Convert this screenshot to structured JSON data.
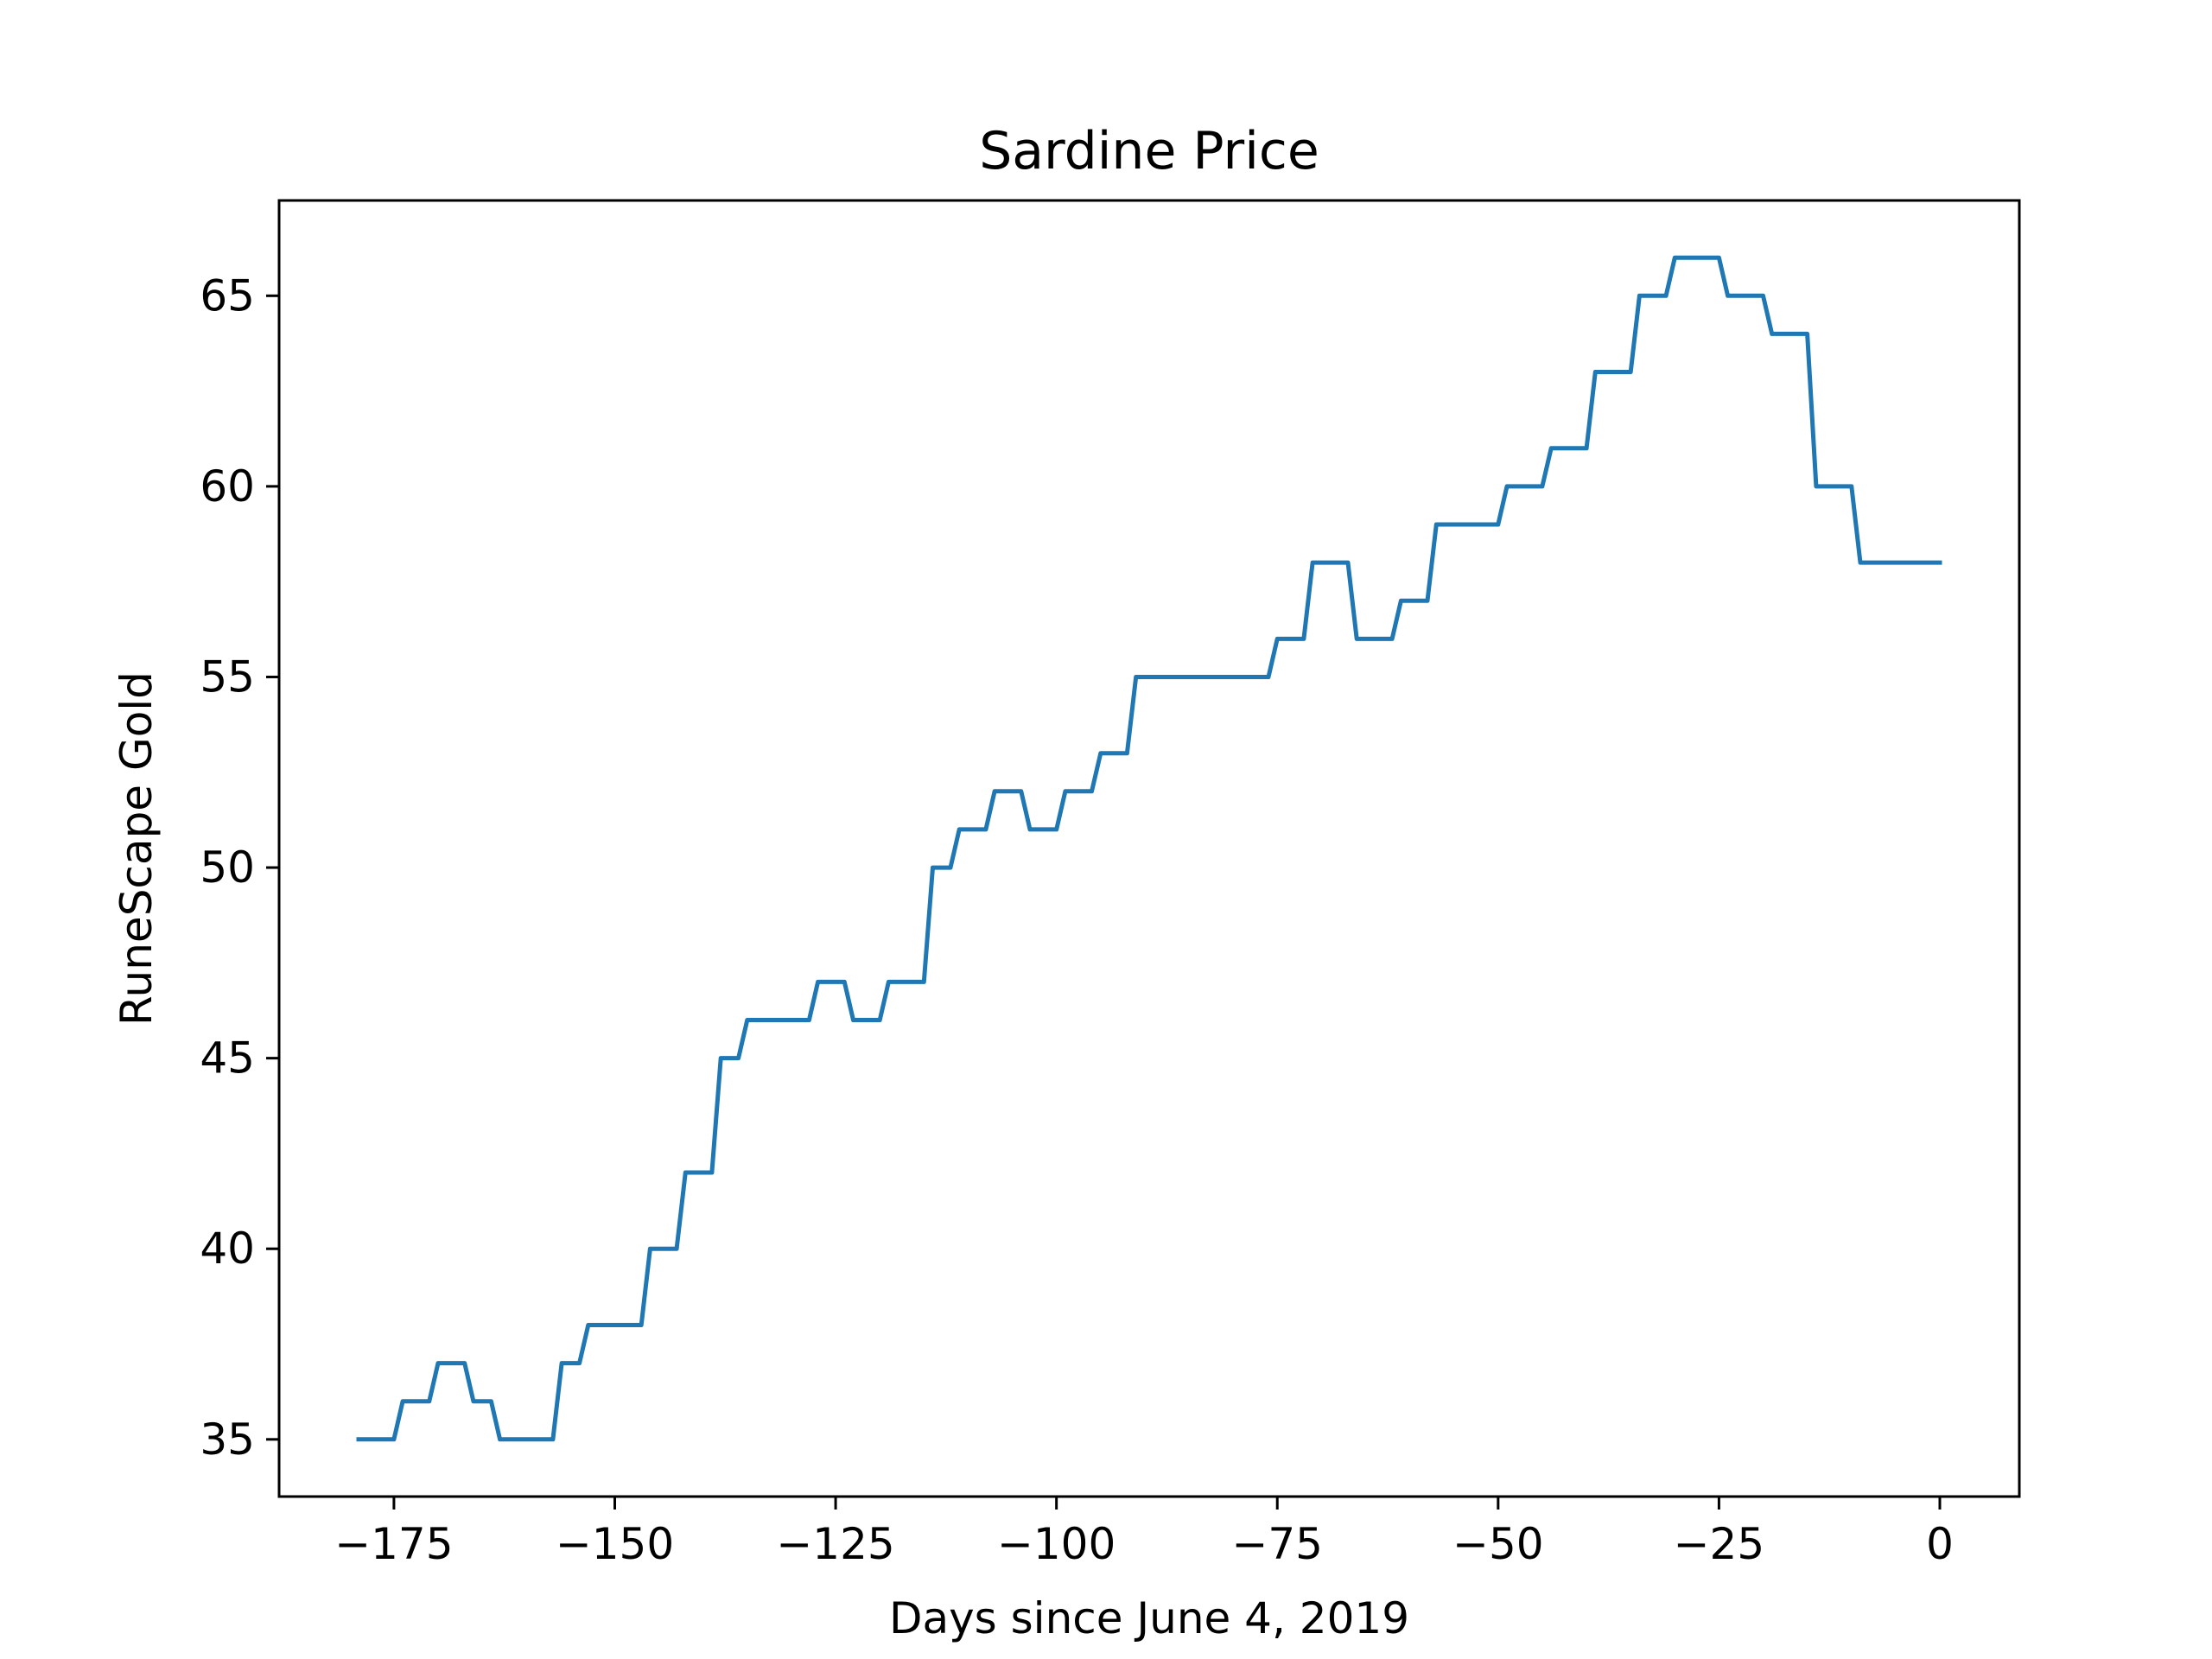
{
  "chart_data": {
    "type": "line",
    "title": "Sardine Price",
    "xlabel": "Days since June 4, 2019",
    "ylabel": "RuneScape Gold",
    "xlim": [
      -188,
      9
    ],
    "ylim": [
      33.5,
      67.5
    ],
    "grid": false,
    "xticks": [
      -175,
      -150,
      -125,
      -100,
      -75,
      -50,
      -25,
      0
    ],
    "xtick_labels": [
      "−175",
      "−150",
      "−125",
      "−100",
      "−75",
      "−50",
      "−25",
      "0"
    ],
    "yticks": [
      35,
      40,
      45,
      50,
      55,
      60,
      65
    ],
    "ytick_labels": [
      "35",
      "40",
      "45",
      "50",
      "55",
      "60",
      "65"
    ],
    "colors": {
      "line": "#1f77b4"
    },
    "series": [
      {
        "x": [
          -179,
          -175,
          -174,
          -171,
          -170,
          -167,
          -166,
          -164,
          -163,
          -157,
          -156,
          -154,
          -153,
          -147,
          -146,
          -143,
          -142,
          -139,
          -138,
          -136,
          -135,
          -128,
          -127,
          -124,
          -123,
          -120,
          -119,
          -115,
          -114,
          -112,
          -111,
          -108,
          -107,
          -104,
          -103,
          -100,
          -99,
          -96,
          -95,
          -92,
          -91,
          -76,
          -75,
          -72,
          -71,
          -67,
          -66,
          -62,
          -61,
          -58,
          -57,
          -50,
          -49,
          -45,
          -44,
          -40,
          -39,
          -35,
          -34,
          -31,
          -30,
          -25,
          -24,
          -20,
          -19,
          -15,
          -14,
          -10,
          -9,
          0
        ],
        "y": [
          35,
          35,
          36,
          36,
          37,
          37,
          36,
          36,
          35,
          35,
          37,
          37,
          38,
          38,
          40,
          40,
          42,
          42,
          45,
          45,
          46,
          46,
          47,
          47,
          46,
          46,
          47,
          47,
          50,
          50,
          51,
          51,
          52,
          52,
          51,
          51,
          52,
          52,
          53,
          53,
          55,
          55,
          56,
          56,
          58,
          58,
          56,
          56,
          57,
          57,
          59,
          59,
          60,
          60,
          61,
          61,
          63,
          63,
          65,
          65,
          66,
          66,
          65,
          65,
          64,
          64,
          60,
          60,
          58,
          58
        ]
      }
    ]
  }
}
